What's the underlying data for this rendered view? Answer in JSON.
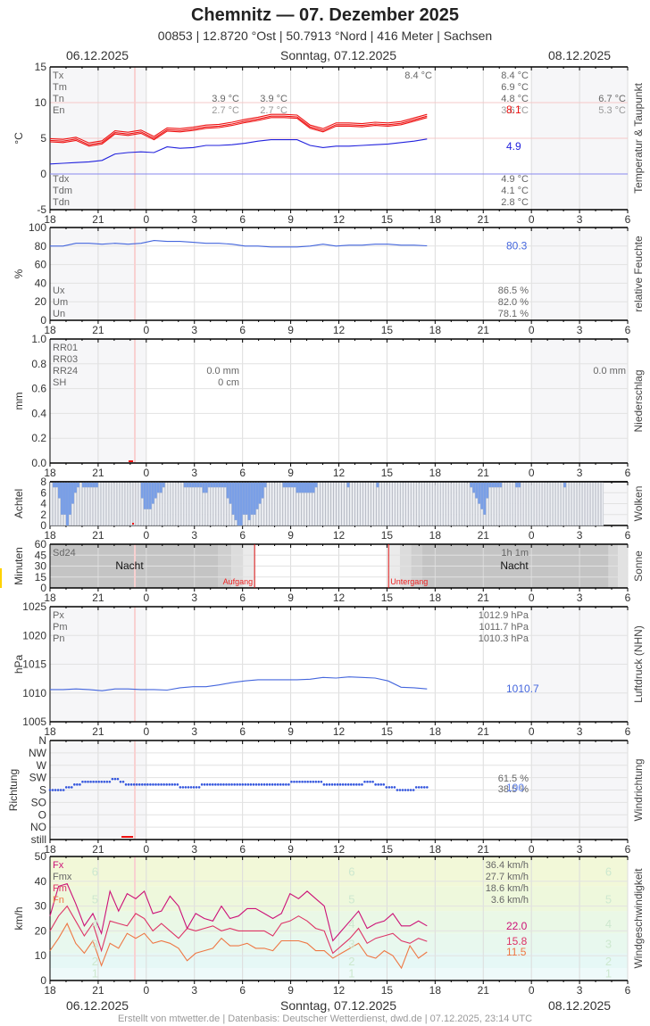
{
  "header": {
    "title": "Chemnitz  —  07. Dezember 2025",
    "subtitle": "00853  |  12.8720 °Ost  |  50.7913 °Nord  |  416 Meter  |  Sachsen"
  },
  "dates": {
    "left": "06.12.2025",
    "center": "Sonntag, 07.12.2025",
    "right": "08.12.2025"
  },
  "footer": "Erstellt von mtwetter.de | Datenbasis: Deutscher Wetterdienst, dwd.de | 07.12.2025, 23:14 UTC",
  "x_ticks": [
    "18",
    "21",
    "0",
    "3",
    "6",
    "9",
    "12",
    "15",
    "18",
    "21",
    "0",
    "3",
    "6"
  ],
  "chart_data": [
    {
      "type": "line",
      "title": "Temperatur & Taupunkt",
      "ylabel": "°C",
      "ylim": [
        -5,
        15
      ],
      "yticks": [
        "15",
        "10",
        "5",
        "0",
        "-5"
      ],
      "x_hours": [
        18,
        19,
        20,
        21,
        22,
        23,
        0,
        1,
        2,
        3,
        4,
        5,
        6,
        7,
        8,
        9,
        10,
        11,
        12,
        13,
        14,
        15,
        16,
        17,
        18,
        19,
        20,
        21,
        22,
        23
      ],
      "series": [
        {
          "name": "Temperatur",
          "color": "#ee1111",
          "values": [
            4.7,
            4.6,
            4.9,
            4.1,
            4.4,
            5.8,
            5.6,
            5.9,
            5.0,
            6.2,
            6.1,
            6.3,
            6.6,
            6.7,
            7.0,
            7.4,
            7.7,
            8.1,
            8.1,
            8.0,
            6.6,
            6.1,
            6.9,
            6.9,
            6.8,
            7.0,
            6.9,
            7.1,
            7.6,
            8.1
          ]
        },
        {
          "name": "Taupunkt",
          "color": "#2222dd",
          "values": [
            1.4,
            1.5,
            1.6,
            1.7,
            1.9,
            2.8,
            3.0,
            3.1,
            3.0,
            3.8,
            3.6,
            3.7,
            4.0,
            4.0,
            4.1,
            4.3,
            4.6,
            4.8,
            4.8,
            4.8,
            4.0,
            3.7,
            3.9,
            3.9,
            4.0,
            4.1,
            4.2,
            4.4,
            4.6,
            4.9
          ]
        }
      ],
      "current": {
        "temp": "8.1",
        "dew": "4.9"
      },
      "labels_left": [
        "Tx",
        "Tm",
        "Tn",
        "En"
      ],
      "labels_left_bottom": [
        "Tdx",
        "Tdm",
        "Tdn"
      ],
      "prev_day": {
        "Tn": "3.9 °C",
        "En": "2.7 °C"
      },
      "prev_day2": {
        "Tn": "3.9 °C",
        "En": "2.7 °C"
      },
      "stats": {
        "Tx_peak": "8.4 °C",
        "Tx": "8.4 °C",
        "Tm": "6.9 °C",
        "Tn": "4.8 °C",
        "En": "3.6 °C",
        "Tdx": "4.9 °C",
        "Tdm": "4.1 °C",
        "Tdn": "2.8 °C"
      },
      "next_day": {
        "Tn": "6.7 °C",
        "En": "5.3 °C"
      }
    },
    {
      "type": "line",
      "title": "relative Feuchte",
      "ylabel": "%",
      "ylim": [
        0,
        100
      ],
      "yticks": [
        "100",
        "80",
        "60",
        "40",
        "20",
        "0"
      ],
      "series": [
        {
          "name": "Feuchte",
          "color": "#4466dd",
          "values": [
            80,
            80,
            83,
            83,
            82,
            83,
            82,
            83,
            86,
            85,
            85,
            84,
            83,
            83,
            82,
            80,
            80,
            79,
            79,
            79,
            80,
            82,
            80,
            81,
            81,
            82,
            82,
            81,
            81,
            80.3
          ]
        }
      ],
      "current": "80.3",
      "labels_left": [
        "Ux",
        "Um",
        "Un"
      ],
      "stats": {
        "Ux": "86.5 %",
        "Um": "82.0 %",
        "Un": "78.1 %"
      }
    },
    {
      "type": "bar",
      "title": "Niederschlag",
      "ylabel": "mm",
      "ylim": [
        0,
        1.0
      ],
      "yticks": [
        "1.0",
        "0.8",
        "0.6",
        "0.4",
        "0.2",
        "0.0"
      ],
      "labels_left": [
        "RR01",
        "RR03",
        "RR24",
        "SH"
      ],
      "stats": {
        "RR24": "0.0 mm",
        "SH": "0 cm"
      },
      "next_day": {
        "RR24": "0.0 mm"
      }
    },
    {
      "type": "bar",
      "title": "Wolken",
      "ylabel": "Achtel",
      "ylim": [
        0,
        8
      ],
      "yticks": [
        "8",
        "6",
        "4",
        "2",
        "0"
      ],
      "values_per_10min": [
        8,
        7,
        7,
        5,
        2,
        2,
        0,
        2,
        4,
        6,
        7,
        8,
        7,
        7,
        7,
        7,
        7,
        7,
        8,
        8,
        8,
        8,
        8,
        8,
        8,
        8,
        8,
        8,
        8,
        8,
        8,
        8,
        8,
        8,
        5,
        3,
        3,
        3,
        4,
        5,
        6,
        6,
        7,
        8,
        8,
        8,
        8,
        8,
        8,
        8,
        7,
        7,
        7,
        7,
        7,
        7,
        7,
        6,
        6,
        7,
        7,
        7,
        7,
        7,
        7,
        7,
        5,
        4,
        2,
        1,
        0,
        0,
        2,
        2,
        1,
        2,
        2,
        3,
        4,
        5,
        7,
        8,
        8,
        8,
        8,
        8,
        8,
        7,
        7,
        7,
        7,
        7,
        6,
        6,
        6,
        6,
        6,
        6,
        6,
        7,
        8,
        8,
        8,
        8,
        8,
        8,
        8,
        8,
        8,
        8,
        8,
        7,
        8,
        8,
        8,
        8,
        8,
        8,
        8,
        8,
        8,
        8,
        7,
        8,
        8,
        8,
        8,
        8,
        8,
        8,
        8,
        8,
        8,
        8,
        8,
        8,
        8,
        8,
        8,
        8,
        8,
        8,
        8,
        8,
        8,
        8,
        8,
        8,
        8,
        8,
        8,
        8,
        8,
        8,
        8,
        8,
        8,
        7,
        6,
        5,
        4,
        3,
        2,
        5,
        7,
        7,
        7,
        7,
        7,
        8,
        8,
        8,
        8,
        8,
        7,
        7,
        8,
        8,
        8,
        8,
        8,
        8,
        8,
        8,
        8,
        8,
        8,
        8,
        8,
        8,
        8,
        8,
        7,
        8,
        8,
        8,
        8,
        8,
        8,
        8,
        8,
        8,
        8,
        8,
        8,
        8,
        8
      ]
    },
    {
      "type": "bar",
      "title": "Sonne",
      "ylabel": "Minuten",
      "ylim": [
        0,
        60
      ],
      "yticks": [
        "60",
        "45",
        "30",
        "15",
        "0"
      ],
      "hours": [
        7,
        8,
        13,
        14
      ],
      "values": [
        10,
        16,
        12,
        27
      ],
      "labels": {
        "Sd24": "Sd24",
        "night": "Nacht",
        "sunrise": "Aufgang",
        "sunset": "Untergang",
        "total": "1h 1m"
      }
    },
    {
      "type": "line",
      "title": "Luftdruck (NHN)",
      "ylabel": "hPa",
      "ylim": [
        1005,
        1025
      ],
      "yticks": [
        "1025",
        "1020",
        "1015",
        "1010",
        "1005"
      ],
      "series": [
        {
          "name": "Luftdruck",
          "color": "#4466dd",
          "values": [
            1010.6,
            1010.6,
            1010.7,
            1010.6,
            1010.4,
            1010.7,
            1010.7,
            1010.6,
            1010.6,
            1010.5,
            1010.9,
            1011.1,
            1011.1,
            1011.4,
            1011.8,
            1012.1,
            1012.3,
            1012.3,
            1012.3,
            1012.3,
            1012.4,
            1012.7,
            1012.6,
            1012.8,
            1012.7,
            1012.6,
            1012.1,
            1011.0,
            1010.9,
            1010.7
          ]
        }
      ],
      "current": "1010.7",
      "labels_left": [
        "Px",
        "Pm",
        "Pn"
      ],
      "stats": {
        "Px": "1012.9 hPa",
        "Pm": "1011.7 hPa",
        "Pn": "1010.3 hPa"
      }
    },
    {
      "type": "scatter",
      "title": "Windrichtung",
      "ylabel": "Richtung",
      "ycategories": [
        "N",
        "NW",
        "W",
        "SW",
        "S",
        "SO",
        "O",
        "NO",
        "still"
      ],
      "values_deg": [
        180,
        180,
        200,
        215,
        205,
        220,
        200,
        200,
        195,
        200,
        195,
        190,
        200,
        195,
        205,
        195,
        200,
        200,
        200,
        210,
        215,
        205,
        200,
        200,
        205,
        205,
        190,
        180,
        185,
        190
      ],
      "current": "190",
      "stats": {
        "top": "61.5 %",
        "bottom": "38.5 %"
      }
    },
    {
      "type": "line",
      "title": "Windgeschwindigkeit",
      "ylabel": "km/h",
      "ylim": [
        0,
        50
      ],
      "yticks": [
        "50",
        "40",
        "30",
        "20",
        "10",
        "0"
      ],
      "beaufort": [
        "1",
        "2",
        "3",
        "4",
        "5",
        "6"
      ],
      "series": [
        {
          "name": "Fx",
          "color": "#cc1177",
          "values": [
            26,
            38,
            39,
            31,
            22,
            27,
            19,
            36,
            28,
            35,
            33,
            36,
            27,
            28,
            34,
            30,
            21,
            27,
            25,
            24,
            30,
            25,
            26,
            29,
            29,
            27,
            25,
            27,
            35,
            33,
            36,
            33,
            30,
            16,
            20,
            24,
            28,
            21,
            23,
            24,
            27,
            22,
            22,
            24,
            22
          ]
        },
        {
          "name": "Fm",
          "color": "#dd3366",
          "values": [
            20,
            26,
            30,
            24,
            18,
            23,
            12,
            24,
            23,
            22,
            27,
            25,
            20,
            23,
            20,
            17,
            21,
            20,
            21,
            22,
            20,
            21,
            20,
            20,
            20,
            20,
            18,
            23,
            24,
            26,
            24,
            21,
            20,
            11,
            14,
            17,
            21,
            15,
            17,
            18,
            19,
            16,
            15,
            17,
            15.8
          ]
        },
        {
          "name": "Fn",
          "color": "#ee7744",
          "values": [
            12,
            17,
            23,
            15,
            11,
            16,
            6,
            15,
            13,
            19,
            17,
            19,
            15,
            16,
            15,
            13,
            8,
            11,
            12,
            13,
            17,
            14,
            14,
            15,
            13,
            13,
            12,
            16,
            16,
            16,
            15,
            12,
            12,
            9,
            11,
            13,
            15,
            10,
            9,
            12,
            10,
            5,
            14,
            9,
            11.5
          ]
        }
      ],
      "current": {
        "Fx": "22.0",
        "Fm": "15.8",
        "Fn": "11.5"
      },
      "labels_left": [
        "Fx",
        "Fmx",
        "Fm",
        "Fn"
      ],
      "stats": {
        "Fx": "36.4 km/h",
        "Fmx": "27.7 km/h",
        "Fm": "18.6 km/h",
        "Fn": "3.6 km/h"
      }
    }
  ]
}
